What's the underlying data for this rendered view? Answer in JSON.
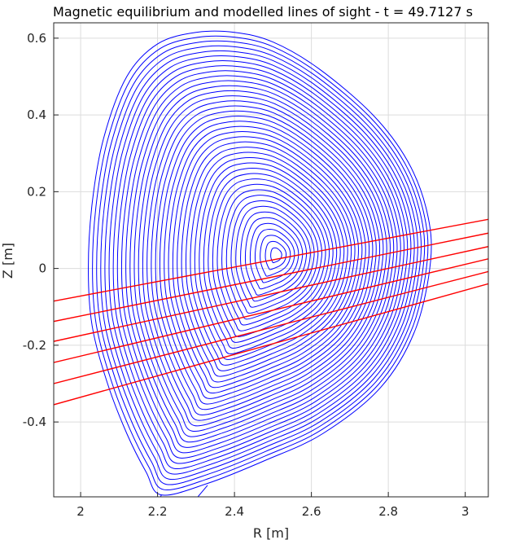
{
  "chart_data": {
    "type": "line",
    "title": "Magnetic equilibrium and modelled lines of sight - t = 49.7127 s",
    "xlabel": "R [m]",
    "ylabel": "Z [m]",
    "xlim": [
      1.93,
      3.06
    ],
    "ylim": [
      -0.595,
      0.64
    ],
    "grid": true,
    "xticks": [
      2,
      2.2,
      2.4,
      2.6,
      2.8,
      3
    ],
    "xtick_labels": [
      "2",
      "2.2",
      "2.4",
      "2.6",
      "2.8",
      "3"
    ],
    "yticks": [
      0.6,
      0.4,
      0.2,
      0,
      -0.2,
      -0.4
    ],
    "ytick_labels": [
      "0.6",
      "0.4",
      "0.2",
      "0",
      "-0.2",
      "-0.4"
    ],
    "equilibrium": {
      "color": "#0000ff",
      "magnetic_axis": [
        2.51,
        0.035
      ],
      "n_surfaces": 42,
      "separatrix": [
        [
          2.4,
          0.615
        ],
        [
          2.3,
          0.615
        ],
        [
          2.2,
          0.585
        ],
        [
          2.12,
          0.5
        ],
        [
          2.06,
          0.34
        ],
        [
          2.03,
          0.17
        ],
        [
          2.02,
          0.0
        ],
        [
          2.03,
          -0.15
        ],
        [
          2.07,
          -0.3
        ],
        [
          2.12,
          -0.43
        ],
        [
          2.17,
          -0.53
        ],
        [
          2.21,
          -0.59
        ],
        [
          2.33,
          -0.56
        ],
        [
          2.48,
          -0.5
        ],
        [
          2.63,
          -0.43
        ],
        [
          2.78,
          -0.31
        ],
        [
          2.87,
          -0.16
        ],
        [
          2.91,
          0.02
        ],
        [
          2.9,
          0.15
        ],
        [
          2.85,
          0.28
        ],
        [
          2.76,
          0.4
        ],
        [
          2.62,
          0.52
        ],
        [
          2.5,
          0.59
        ]
      ]
    },
    "lines_of_sight": {
      "color": "#ff0000",
      "lines": [
        {
          "x": [
            1.93,
            3.06
          ],
          "y": [
            -0.085,
            0.128
          ]
        },
        {
          "x": [
            1.93,
            3.06
          ],
          "y": [
            -0.138,
            0.092
          ]
        },
        {
          "x": [
            1.93,
            3.06
          ],
          "y": [
            -0.19,
            0.057
          ]
        },
        {
          "x": [
            1.93,
            3.06
          ],
          "y": [
            -0.245,
            0.025
          ]
        },
        {
          "x": [
            1.93,
            3.06
          ],
          "y": [
            -0.3,
            -0.008
          ]
        },
        {
          "x": [
            1.93,
            3.06
          ],
          "y": [
            -0.355,
            -0.04
          ]
        }
      ]
    }
  }
}
